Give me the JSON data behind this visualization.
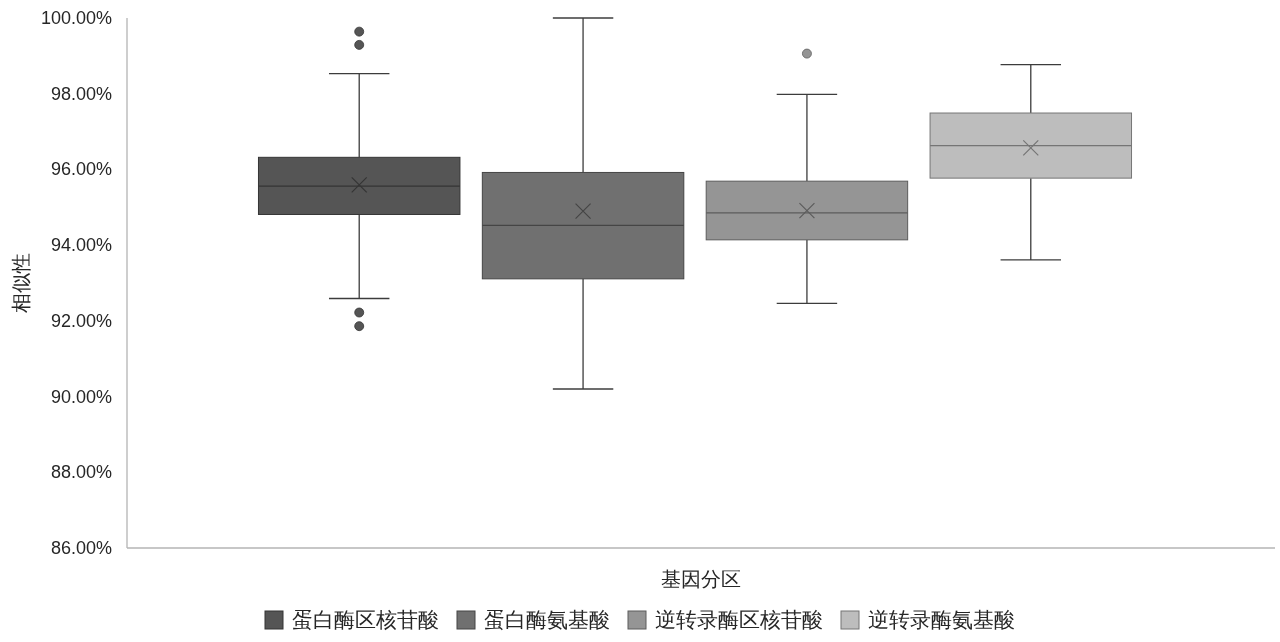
{
  "chart_data": {
    "type": "box",
    "ylabel": "相似性",
    "xlabel": "基因分区",
    "categories": [
      null
    ],
    "series": [
      {
        "name": "蛋白酶区核苷酸",
        "color": "#555555",
        "boxes": [
          {
            "low": 92.59,
            "q1": 94.81,
            "median": 95.56,
            "q3": 96.32,
            "high": 98.53,
            "mean": 95.59,
            "outliers": [
              99.64,
              99.29,
              92.22,
              91.86
            ]
          }
        ]
      },
      {
        "name": "蛋白酶氨基酸",
        "color": "#707070",
        "boxes": [
          {
            "low": 90.2,
            "q1": 93.11,
            "median": 94.52,
            "q3": 95.92,
            "high": 100.0,
            "mean": 94.9
          }
        ]
      },
      {
        "name": "逆转录酶区核苷酸",
        "color": "#959595",
        "boxes": [
          {
            "low": 92.46,
            "q1": 94.14,
            "median": 94.85,
            "q3": 95.69,
            "high": 97.98,
            "mean": 94.91,
            "outliers": [
              99.06
            ]
          }
        ]
      },
      {
        "name": "逆转录酶氨基酸",
        "color": "#bdbdbd",
        "boxes": [
          {
            "low": 93.61,
            "q1": 95.77,
            "median": 96.63,
            "q3": 97.49,
            "high": 98.77,
            "mean": 96.57
          }
        ]
      }
    ],
    "ylim": [
      86,
      100
    ],
    "yticks": [
      {
        "value": 86,
        "label": "86.00%"
      },
      {
        "value": 88,
        "label": "88.00%"
      },
      {
        "value": 90,
        "label": "90.00%"
      },
      {
        "value": 92,
        "label": "92.00%"
      },
      {
        "value": 94,
        "label": "94.00%"
      },
      {
        "value": 96,
        "label": "96.00%"
      },
      {
        "value": 98,
        "label": "98.00%"
      },
      {
        "value": 100,
        "label": "100.00%"
      }
    ],
    "legend": "bottom"
  }
}
